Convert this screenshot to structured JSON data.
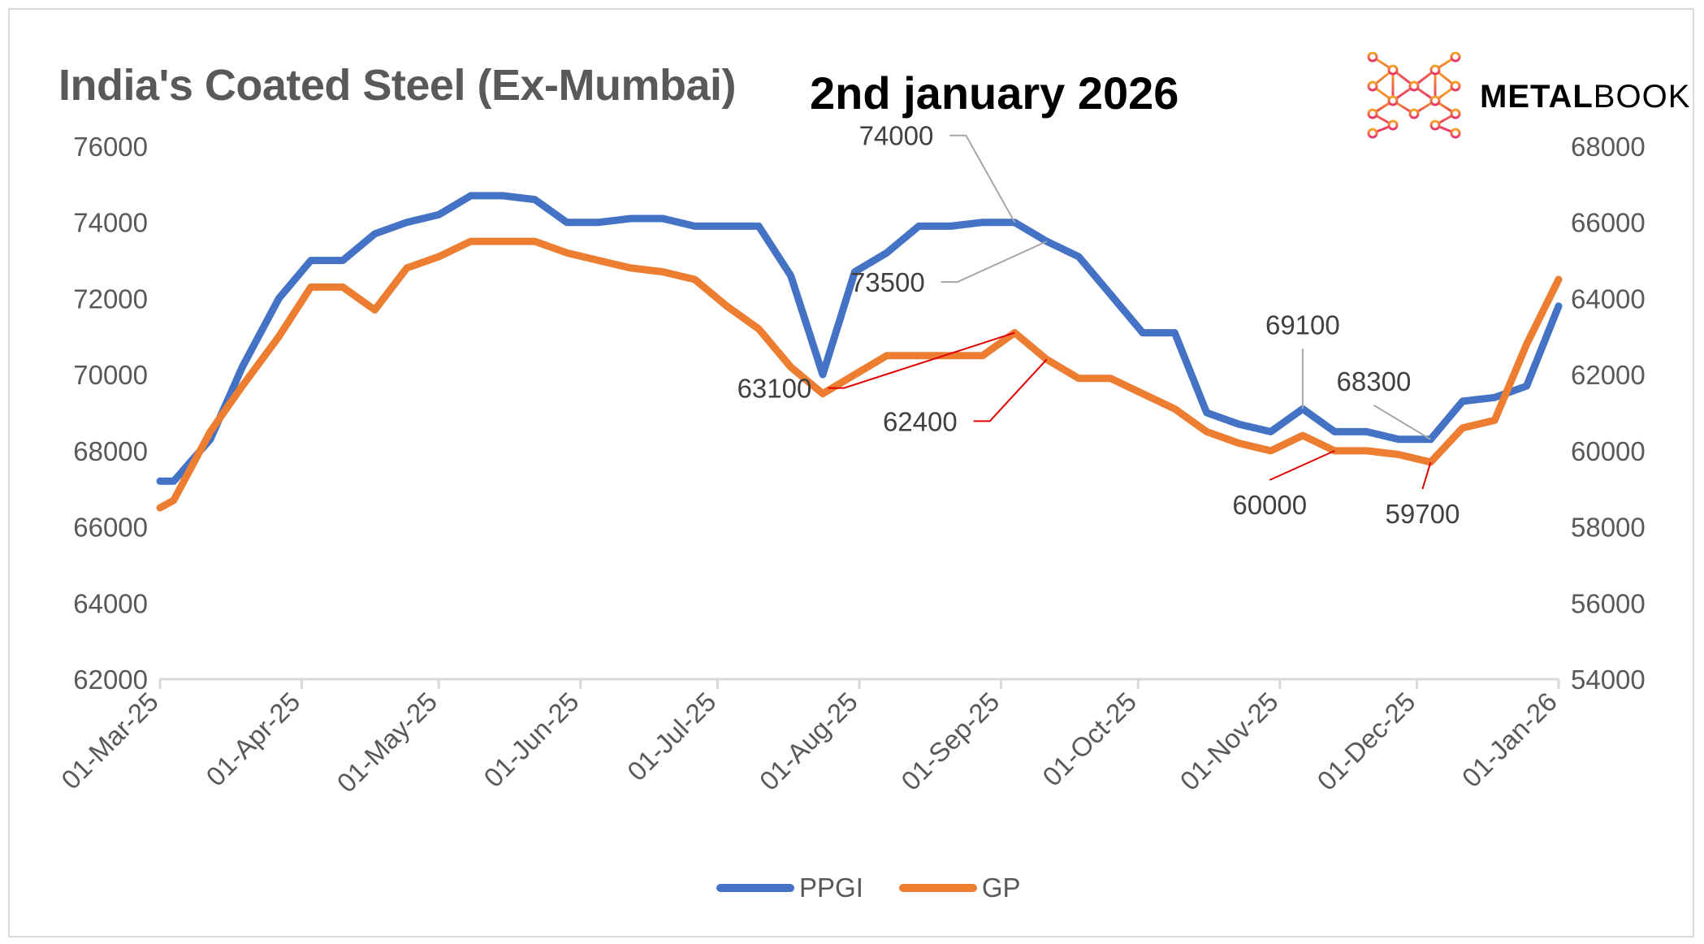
{
  "header": {
    "title": "India's Coated Steel (Ex-Mumbai)",
    "date": "2nd january 2026",
    "logo_bold": "METAL",
    "logo_light": "BOOK"
  },
  "colors": {
    "ppgi": "#4472C4",
    "gp": "#ED7D31",
    "leader_gray": "#A6A6A6",
    "leader_red": "#E00000",
    "logo_top": "#F5A623",
    "logo_bottom": "#E8336B"
  },
  "chart_data": {
    "type": "line",
    "title": "India's Coated Steel (Ex-Mumbai)",
    "subtitle": "2nd january 2026",
    "xlabel": "",
    "ylabel": "",
    "x_ticks": [
      "01-Mar-25",
      "01-Apr-25",
      "01-May-25",
      "01-Jun-25",
      "01-Jul-25",
      "01-Aug-25",
      "01-Sep-25",
      "01-Oct-25",
      "01-Nov-25",
      "01-Dec-25",
      "01-Jan-26"
    ],
    "x_range": [
      "2025-03-01",
      "2026-01-01"
    ],
    "y_left": {
      "range": [
        62000,
        76000
      ],
      "ticks": [
        62000,
        64000,
        66000,
        68000,
        70000,
        72000,
        74000,
        76000
      ],
      "series": "PPGI"
    },
    "y_right": {
      "range": [
        54000,
        68000
      ],
      "ticks": [
        54000,
        56000,
        58000,
        60000,
        62000,
        64000,
        66000,
        68000
      ],
      "series": "GP"
    },
    "grid": false,
    "legend": "bottom",
    "x": [
      "2025-03-01",
      "2025-03-04",
      "2025-03-12",
      "2025-03-19",
      "2025-03-27",
      "2025-04-03",
      "2025-04-10",
      "2025-04-17",
      "2025-04-24",
      "2025-05-01",
      "2025-05-08",
      "2025-05-15",
      "2025-05-22",
      "2025-05-29",
      "2025-06-05",
      "2025-06-12",
      "2025-06-19",
      "2025-06-26",
      "2025-07-03",
      "2025-07-10",
      "2025-07-17",
      "2025-07-24",
      "2025-07-31",
      "2025-08-07",
      "2025-08-14",
      "2025-08-21",
      "2025-08-28",
      "2025-09-04",
      "2025-09-11",
      "2025-09-18",
      "2025-09-25",
      "2025-10-02",
      "2025-10-09",
      "2025-10-16",
      "2025-10-23",
      "2025-10-30",
      "2025-11-06",
      "2025-11-13",
      "2025-11-20",
      "2025-11-27",
      "2025-12-04",
      "2025-12-11",
      "2025-12-18",
      "2025-12-25",
      "2026-01-01"
    ],
    "series": [
      {
        "name": "PPGI",
        "axis": "left",
        "values": [
          67200,
          67200,
          68300,
          70200,
          72000,
          73000,
          73000,
          73700,
          74000,
          74200,
          74700,
          74700,
          74600,
          74000,
          74000,
          74100,
          74100,
          73900,
          73900,
          73900,
          72600,
          70000,
          72700,
          73200,
          73900,
          73900,
          74000,
          74000,
          73500,
          73100,
          72100,
          71100,
          71100,
          69000,
          68700,
          68500,
          69100,
          68500,
          68500,
          68300,
          68300,
          69300,
          69400,
          69700,
          71800
        ]
      },
      {
        "name": "GP",
        "axis": "right",
        "values": [
          58500,
          58700,
          60500,
          61700,
          63000,
          64300,
          64300,
          63700,
          64800,
          65100,
          65500,
          65500,
          65500,
          65200,
          65000,
          64800,
          64700,
          64500,
          63800,
          63200,
          62200,
          61500,
          62000,
          62500,
          62500,
          62500,
          62500,
          63100,
          62400,
          61900,
          61900,
          61500,
          61100,
          60500,
          60200,
          60000,
          60400,
          60000,
          60000,
          59900,
          59700,
          60600,
          60800,
          62800,
          64500
        ]
      }
    ],
    "annotations": [
      {
        "series": "PPGI",
        "index": 27,
        "label": "74000"
      },
      {
        "series": "PPGI",
        "index": 28,
        "label": "73500"
      },
      {
        "series": "PPGI",
        "index": 36,
        "label": "69100"
      },
      {
        "series": "PPGI",
        "index": 40,
        "label": "68300"
      },
      {
        "series": "GP",
        "index": 27,
        "label": "63100"
      },
      {
        "series": "GP",
        "index": 28,
        "label": "62400"
      },
      {
        "series": "GP",
        "index": 37,
        "label": "60000"
      },
      {
        "series": "GP",
        "index": 40,
        "label": "59700"
      }
    ]
  },
  "legend": [
    {
      "label": "PPGI"
    },
    {
      "label": "GP"
    }
  ]
}
